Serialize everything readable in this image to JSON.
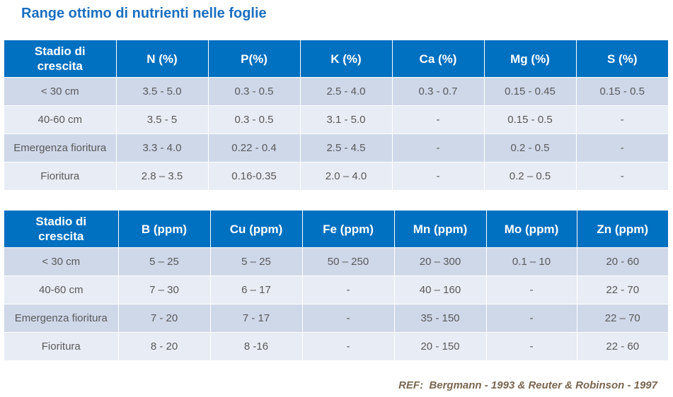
{
  "title": "Range ottimo di nutrienti nelle foglie",
  "tables": [
    {
      "header": [
        "Stadio di crescita",
        "N (%)",
        "P(%)",
        "K (%)",
        "Ca (%)",
        "Mg (%)",
        "S (%)"
      ],
      "rows": [
        [
          "< 30 cm",
          "3.5 - 5.0",
          "0.3 - 0.5",
          "2.5 - 4.0",
          "0.3 - 0.7",
          "0.15 - 0.45",
          "0.15 - 0.5"
        ],
        [
          "40-60 cm",
          "3.5 - 5",
          "0.3 - 0.5",
          "3.1 - 5.0",
          "-",
          "0.15 - 0.5",
          "-"
        ],
        [
          "Emergenza fioritura",
          "3.3 - 4.0",
          "0.22 - 0.4",
          "2.5 - 4.5",
          "-",
          "0.2 - 0.5",
          "-"
        ],
        [
          "Fioritura",
          "2.8 – 3.5",
          "0.16-0.35",
          "2.0 – 4.0",
          "-",
          "0.2 – 0.5",
          "-"
        ]
      ]
    },
    {
      "header": [
        "Stadio di crescita",
        "B (ppm)",
        "Cu (ppm)",
        "Fe (ppm)",
        "Mn (ppm)",
        "Mo (ppm)",
        "Zn (ppm)"
      ],
      "rows": [
        [
          "< 30 cm",
          "5 – 25",
          "5 – 25",
          "50 – 250",
          "20 – 300",
          "0.1 – 10",
          "20 - 60"
        ],
        [
          "40-60 cm",
          "7 – 30",
          "6 – 17",
          "-",
          "40 – 160",
          "-",
          "22 - 70"
        ],
        [
          "Emergenza fioritura",
          "7 - 20",
          "7 - 17",
          "-",
          "35 - 150",
          "-",
          "22 – 70"
        ],
        [
          "Fioritura",
          "8 - 20",
          "8 -16",
          "-",
          "20 - 150",
          "-",
          "22 - 60"
        ]
      ]
    }
  ],
  "reference": "REF:  Bergmann - 1993 & Reuter & Robinson - 1997"
}
